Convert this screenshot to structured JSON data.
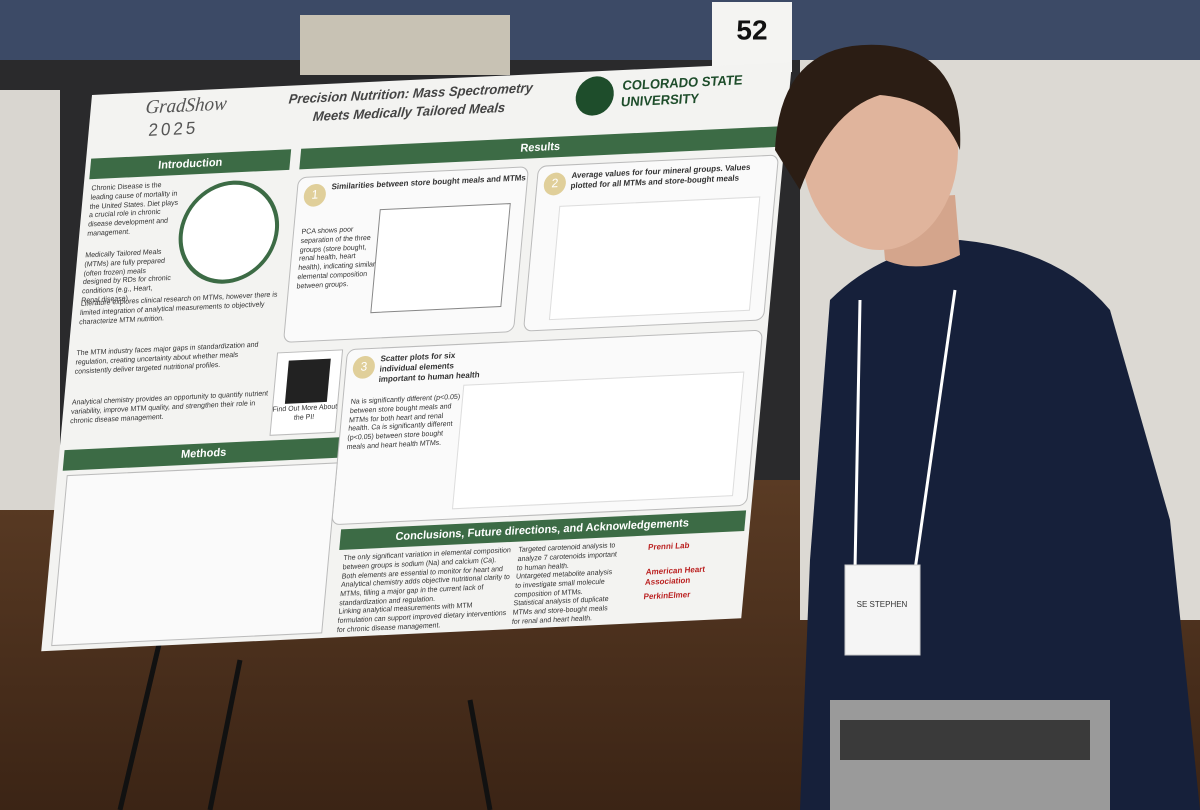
{
  "sign_number": "52",
  "poster": {
    "event": "GradShow",
    "year": "2025",
    "title_line1": "Precision Nutrition: Mass Spectrometry",
    "title_line2": "Meets Medically Tailored Meals",
    "university_line1": "COLORADO STATE",
    "university_line2": "UNIVERSITY",
    "sections": {
      "introduction": "Introduction",
      "results": "Results",
      "methods": "Methods",
      "conclusions": "Conclusions, Future directions, and Acknowledgements"
    },
    "intro_bullets": [
      "Chronic Disease is the leading cause of mortality in the United States. Diet plays a crucial role in chronic disease development and management.",
      "Medically Tailored Meals (MTMs) are fully prepared (often frozen) meals designed by RDs for chronic conditions (e.g., Heart, Renal disease)",
      "Literature explores clinical research on MTMs, however there is limited integration of analytical measurements to objectively characterize MTM nutrition.",
      "The MTM industry faces major gaps in standardization and regulation, creating uncertainty about whether meals consistently deliver targeted nutritional profiles.",
      "Analytical chemistry provides an opportunity to quantify nutrient variability, improve MTM quality, and strengthen their role in chronic disease management."
    ],
    "results_panels": [
      {
        "number": "1",
        "heading": "Similarities between store bought meals and MTMs",
        "text": "PCA shows poor separation of the three groups (store bought, renal health, heart health), indicating similar elemental composition between groups."
      },
      {
        "number": "2",
        "heading": "Average values for four mineral groups. Values plotted for all MTMs and store-bought meals"
      },
      {
        "number": "3",
        "heading": "Scatter plots for six individual elements important to human health",
        "text": "Na is significantly different (p<0.05) between store bought meals and MTMs for both heart and renal health. Ca is significantly different (p<0.05) between store bought meals and heart health MTMs."
      }
    ],
    "qr_caption": "Find Out More About the PI!",
    "conclusion_bullets": [
      "The only significant variation in elemental composition between groups is sodium (Na) and calcium (Ca). Both elements are essential to monitor for heart and renal health.",
      "Analytical chemistry adds objective nutritional clarity to MTMs, filling a major gap in the current lack of standardization and regulation.",
      "Linking analytical measurements with MTM formulation can support improved dietary interventions for chronic disease management."
    ],
    "future_bullets": [
      "Targeted carotenoid analysis to analyze 7 carotenoids important to human health.",
      "Untargeted metabolite analysis to investigate small molecule composition of MTMs.",
      "Statistical analysis of duplicate MTMs and store-bought meals for renal and heart health."
    ],
    "sponsors": [
      "Prenni Lab",
      "American Heart Association",
      "PerkinElmer"
    ]
  },
  "badge_name": "SE STEPHEN"
}
